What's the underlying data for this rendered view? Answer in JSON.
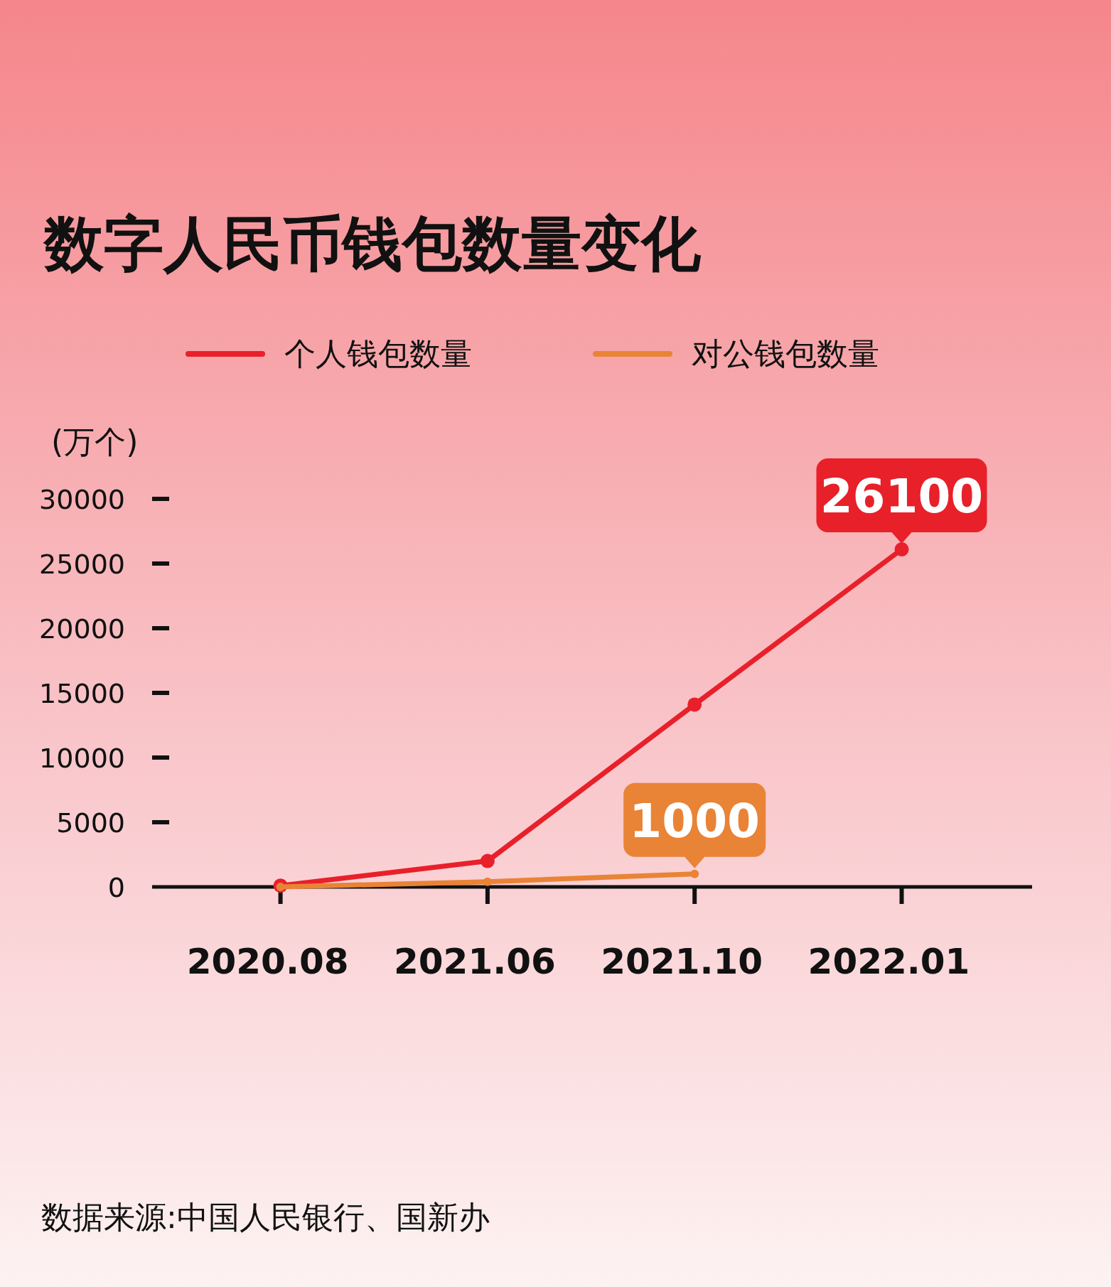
{
  "chart_data": {
    "type": "line",
    "title": "数字人民币钱包数量变化",
    "ylabel": "(万个)",
    "categories": [
      "2020.08",
      "2021.06",
      "2021.10",
      "2022.01"
    ],
    "series": [
      {
        "name": "个人钱包数量",
        "color": "#e8202a",
        "values": [
          100,
          2000,
          14100,
          26100
        ],
        "value_labels": [
          null,
          null,
          null,
          "26100"
        ]
      },
      {
        "name": "对公钱包数量",
        "color": "#e98336",
        "values": [
          0,
          400,
          1000,
          null
        ],
        "value_labels": [
          null,
          null,
          "1000",
          null
        ]
      }
    ],
    "ylim": [
      0,
      30000
    ],
    "yticks": [
      0,
      5000,
      10000,
      15000,
      20000,
      25000,
      30000
    ],
    "legend": "top",
    "marker": "circle",
    "annotations": [
      "数据来源:中国人民银行、国新办"
    ]
  }
}
